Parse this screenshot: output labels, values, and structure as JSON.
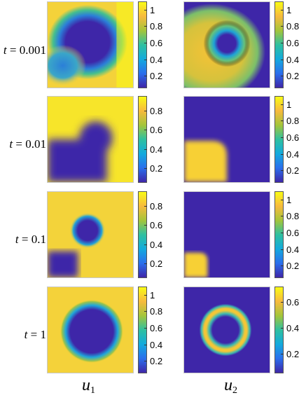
{
  "chart_data": {
    "type": "heatmap",
    "title": "",
    "columns": [
      {
        "name": "u",
        "subscript": "1"
      },
      {
        "name": "u",
        "subscript": "2"
      }
    ],
    "rows": [
      {
        "t_symbol": "t",
        "t_value": "= 0.001",
        "u1": {
          "colorbar_ticks": [
            "1",
            "0.8",
            "0.6",
            "0.4",
            "0.2"
          ],
          "range": [
            0.05,
            1.1
          ]
        },
        "u2": {
          "colorbar_ticks": [
            "1",
            "0.8",
            "0.6",
            "0.4",
            "0.2"
          ],
          "range": [
            0.05,
            1.1
          ]
        }
      },
      {
        "t_symbol": "t",
        "t_value": "= 0.01",
        "u1": {
          "colorbar_ticks": [
            "0.8",
            "0.6",
            "0.4",
            "0.2"
          ],
          "range": [
            0.05,
            0.95
          ]
        },
        "u2": {
          "colorbar_ticks": [
            "1",
            "0.8",
            "0.6",
            "0.4",
            "0.2"
          ],
          "range": [
            0.05,
            1.1
          ]
        }
      },
      {
        "t_symbol": "t",
        "t_value": "= 0.1",
        "u1": {
          "colorbar_ticks": [
            "0.8",
            "0.6",
            "0.4",
            "0.2"
          ],
          "range": [
            0.05,
            0.95
          ]
        },
        "u2": {
          "colorbar_ticks": [
            "1",
            "0.8",
            "0.6",
            "0.4",
            "0.2"
          ],
          "range": [
            0.05,
            1.1
          ]
        }
      },
      {
        "t_symbol": "t",
        "t_value": "= 1",
        "u1": {
          "colorbar_ticks": [
            "1",
            "0.8",
            "0.6",
            "0.4",
            "0.2"
          ],
          "range": [
            0.05,
            1.1
          ]
        },
        "u2": {
          "colorbar_ticks": [
            "0.6",
            "0.4",
            "0.2"
          ],
          "range": [
            0.05,
            0.72
          ]
        }
      }
    ],
    "colormap": [
      "#3e26a8",
      "#2a6fec",
      "#13aadd",
      "#2fc0a0",
      "#a4c53a",
      "#f7ba3d",
      "#f9fb15"
    ],
    "colors": {
      "low": "#3e26a8",
      "mid": "#19b2d4",
      "high": "#f9fb15",
      "orange": "#f7ba3d"
    }
  }
}
